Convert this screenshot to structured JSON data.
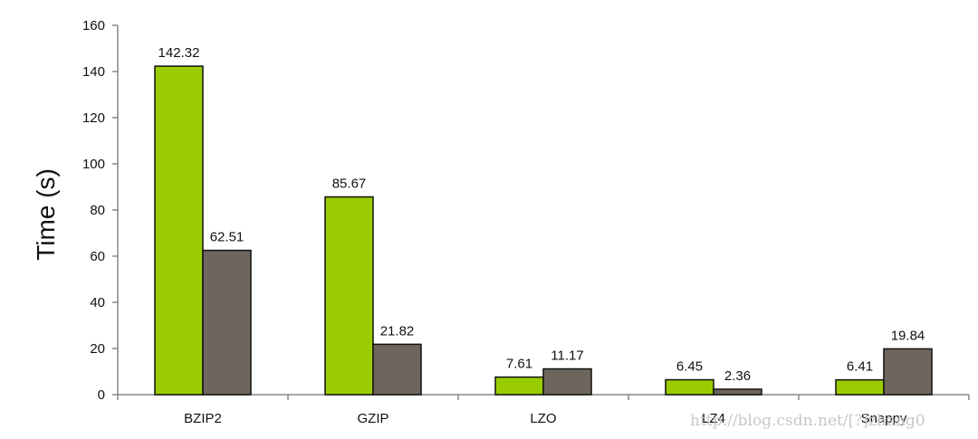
{
  "chart_data": {
    "type": "bar",
    "title": "",
    "xlabel": "",
    "ylabel": "Time (s)",
    "ylim": [
      0,
      160
    ],
    "yticks": [
      0,
      20,
      40,
      60,
      80,
      100,
      120,
      140,
      160
    ],
    "grid": false,
    "legend": "none",
    "categories": [
      "BZIP2",
      "GZIP",
      "LZO",
      "LZ4",
      "Snappy"
    ],
    "series": [
      {
        "values": [
          142.32,
          85.67,
          7.61,
          6.45,
          6.41
        ],
        "labels": [
          "142.32",
          "85.67",
          "7.61",
          "6.45",
          "6.41"
        ],
        "color": "#99cc00"
      },
      {
        "values": [
          62.51,
          21.82,
          11.17,
          2.36,
          19.84
        ],
        "labels": [
          "62.51",
          "21.82",
          "11.17",
          "2.36",
          "19.84"
        ],
        "color": "#6e665c"
      }
    ]
  },
  "watermark": "http://blog.csdn.net/[?]zhang0"
}
